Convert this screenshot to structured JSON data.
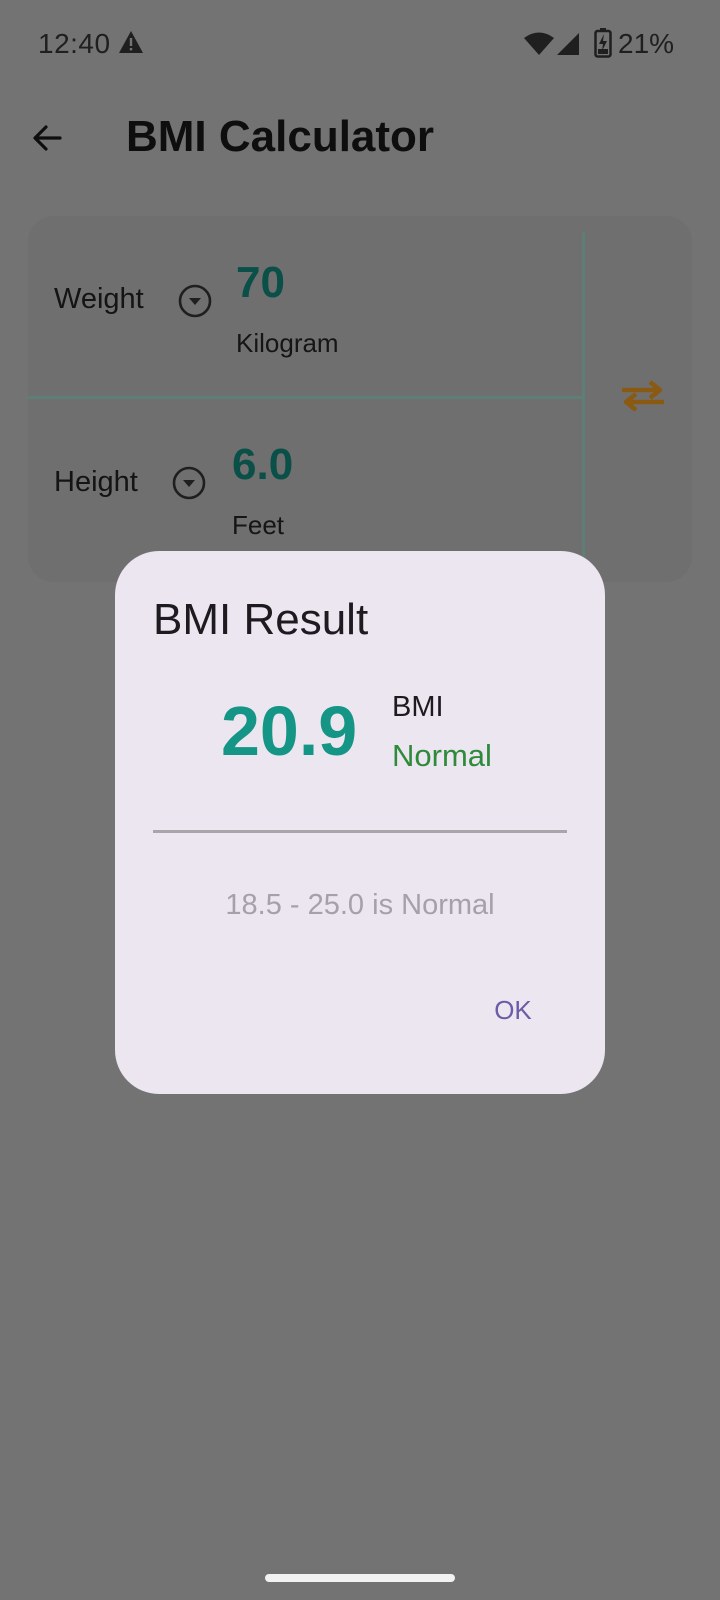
{
  "status_bar": {
    "time": "12:40",
    "battery_percent": "21%"
  },
  "app_bar": {
    "title": "BMI Calculator"
  },
  "inputs": {
    "weight": {
      "label": "Weight",
      "value": "70",
      "unit": "Kilogram"
    },
    "height": {
      "label": "Height",
      "value": "6.0",
      "unit": "Feet"
    }
  },
  "dialog": {
    "title": "BMI Result",
    "bmi_value": "20.9",
    "bmi_label": "BMI",
    "category": "Normal",
    "range_text": "18.5 - 25.0 is Normal",
    "ok_label": "OK"
  },
  "colors": {
    "accent_teal": "#149585",
    "normal_green": "#2f8a3b",
    "ok_purple": "#6a5ca6",
    "swap_orange": "#8a5a12",
    "scrim": "#737373"
  },
  "icons": [
    "warning-icon",
    "wifi-icon",
    "signal-icon",
    "battery-charging-icon",
    "back-arrow-icon",
    "dropdown-icon",
    "swap-icon"
  ]
}
